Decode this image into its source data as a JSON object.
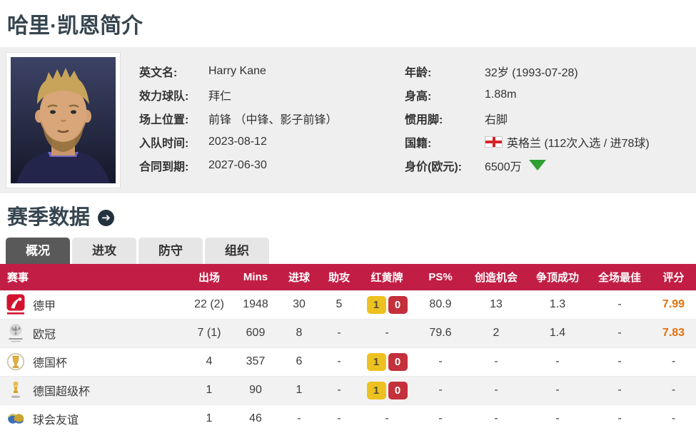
{
  "page": {
    "title": "哈里·凯恩简介"
  },
  "colors": {
    "title_text": "#36454f",
    "panel_bg": "#efefef",
    "table_header_bg": "#c21e45",
    "tab_active_bg": "#595959",
    "tab_inactive_bg": "#e6e6e6",
    "rating_text": "#e1710d",
    "yellow_card_bg": "#edc120",
    "red_card_bg": "#c4303c",
    "money_trend_green": "#2f9e33"
  },
  "profile": {
    "photo_alt": "player-headshot",
    "left": [
      {
        "label": "英文名:",
        "value": "Harry Kane"
      },
      {
        "label": "效力球队:",
        "value": "拜仁"
      },
      {
        "label": "场上位置:",
        "value": "前锋 （中锋、影子前锋）"
      },
      {
        "label": "入队时间:",
        "value": "2023-08-12"
      },
      {
        "label": "合同到期:",
        "value": "2027-06-30"
      }
    ],
    "right": [
      {
        "label": "年龄:",
        "value": "32岁  (1993-07-28)"
      },
      {
        "label": "身高:",
        "value": "1.88m"
      },
      {
        "label": "惯用脚:",
        "value": "右脚"
      },
      {
        "label": "国籍:",
        "value": "英格兰 (112次入选 / 进78球)",
        "icon": "england-flag"
      },
      {
        "label": "身价(欧元):",
        "value": "6500万",
        "icon": "trend-down"
      }
    ]
  },
  "season": {
    "title": "赛季数据",
    "arrow_icon": "circle-arrow-right",
    "tabs": [
      {
        "label": "概况",
        "active": true
      },
      {
        "label": "进攻",
        "active": false
      },
      {
        "label": "防守",
        "active": false
      },
      {
        "label": "组织",
        "active": false
      }
    ]
  },
  "table": {
    "headers": [
      "赛事",
      "出场",
      "Mins",
      "进球",
      "助攻",
      "红黄牌",
      "PS%",
      "创造机会",
      "争顶成功",
      "全场最佳",
      "评分"
    ],
    "rows": [
      {
        "competition": "德甲",
        "icon": "bundesliga",
        "apps": "22 (2)",
        "mins": "1948",
        "goals": "30",
        "assists": "5",
        "yellow": "1",
        "red": "0",
        "cards": null,
        "ps": "80.9",
        "chances": "13",
        "aerials": "1.3",
        "motm": "-",
        "rating": "7.99"
      },
      {
        "competition": "欧冠",
        "icon": "champions-league",
        "apps": "7 (1)",
        "mins": "609",
        "goals": "8",
        "assists": "-",
        "yellow": null,
        "red": null,
        "cards": "-",
        "ps": "79.6",
        "chances": "2",
        "aerials": "1.4",
        "motm": "-",
        "rating": "7.83"
      },
      {
        "competition": "德国杯",
        "icon": "german-cup",
        "apps": "4",
        "mins": "357",
        "goals": "6",
        "assists": "-",
        "yellow": "1",
        "red": "0",
        "cards": null,
        "ps": "-",
        "chances": "-",
        "aerials": "-",
        "motm": "-",
        "rating": "-"
      },
      {
        "competition": "德国超级杯",
        "icon": "german-supercup",
        "apps": "1",
        "mins": "90",
        "goals": "1",
        "assists": "-",
        "yellow": "1",
        "red": "0",
        "cards": null,
        "ps": "-",
        "chances": "-",
        "aerials": "-",
        "motm": "-",
        "rating": "-"
      },
      {
        "competition": "球会友谊",
        "icon": "club-friendly",
        "apps": "1",
        "mins": "46",
        "goals": "-",
        "assists": "-",
        "yellow": null,
        "red": null,
        "cards": "-",
        "ps": "-",
        "chances": "-",
        "aerials": "-",
        "motm": "-",
        "rating": "-"
      }
    ]
  }
}
